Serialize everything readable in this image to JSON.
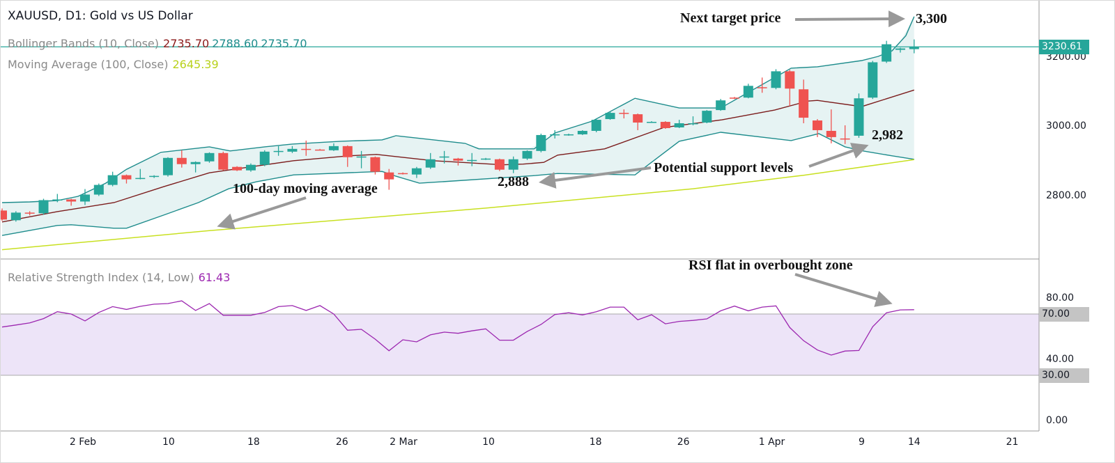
{
  "header": {
    "title": "XAUUSD, D1: Gold vs US Dollar",
    "bb_label": "Bollinger Bands (10, Close)",
    "bb_values": [
      "2735.70",
      "2788.60",
      "2735.70"
    ],
    "ma_label": "Moving Average (100, Close)",
    "ma_value": "2645.39",
    "rsi_label": "Relative Strength Index (14, Low)",
    "rsi_value": "61.43"
  },
  "annotations": {
    "next_target": "Next target price",
    "target_value": "3,300",
    "support_label": "Potential support levels",
    "support_1": "2,888",
    "support_2": "2,982",
    "ma_note": "100-day moving average",
    "rsi_note": "RSI flat in overbought zone"
  },
  "colors": {
    "up": "#26a69a",
    "down": "#ef5350",
    "band": "#1e8c8c",
    "band_fill": "#e6f3f3",
    "basis": "#7b1c1c",
    "ma": "#c8e020",
    "rsi": "#9c27b0",
    "rsi_zone": "#ede4f8"
  },
  "chart_data": [
    {
      "type": "candlestick",
      "title": "XAUUSD, D1: Gold vs US Dollar",
      "ylim": [
        2600,
        3330
      ],
      "y_ticks": [
        "3200.00",
        "3000.00",
        "2800.00"
      ],
      "y_tick_values": [
        3200,
        3000,
        2800
      ],
      "last_price": "3230.61",
      "last_price_value": 3230.61,
      "x_ticks": [
        {
          "label": "2 Feb",
          "index": 5.85
        },
        {
          "label": "10",
          "index": 12.05
        },
        {
          "label": "18",
          "index": 18.2
        },
        {
          "label": "26",
          "index": 24.6
        },
        {
          "label": "2 Mar",
          "index": 29.05
        },
        {
          "label": "10",
          "index": 35.2
        },
        {
          "label": "18",
          "index": 42.95
        },
        {
          "label": "26",
          "index": 49.3
        },
        {
          "label": "1 Apr",
          "index": 55.7
        },
        {
          "label": "9",
          "index": 62.2
        },
        {
          "label": "14",
          "index": 66
        },
        {
          "label": "21",
          "index": 73.1
        }
      ],
      "ohlc": [
        [
          2758,
          2764,
          2728,
          2732
        ],
        [
          2730,
          2756,
          2726,
          2752
        ],
        [
          2752,
          2756,
          2744,
          2750
        ],
        [
          2750,
          2792,
          2746,
          2788
        ],
        [
          2788,
          2806,
          2782,
          2790
        ],
        [
          2790,
          2792,
          2772,
          2784
        ],
        [
          2784,
          2820,
          2774,
          2804
        ],
        [
          2804,
          2836,
          2800,
          2832
        ],
        [
          2832,
          2870,
          2828,
          2860
        ],
        [
          2860,
          2862,
          2836,
          2848
        ],
        [
          2850,
          2878,
          2848,
          2852
        ],
        [
          2856,
          2860,
          2852,
          2858
        ],
        [
          2860,
          2912,
          2856,
          2910
        ],
        [
          2910,
          2932,
          2882,
          2892
        ],
        [
          2892,
          2900,
          2868,
          2898
        ],
        [
          2900,
          2926,
          2896,
          2924
        ],
        [
          2924,
          2928,
          2874,
          2876
        ],
        [
          2884,
          2886,
          2872,
          2874
        ],
        [
          2874,
          2894,
          2870,
          2890
        ],
        [
          2890,
          2932,
          2886,
          2928
        ],
        [
          2928,
          2944,
          2916,
          2930
        ],
        [
          2928,
          2944,
          2924,
          2936
        ],
        [
          2936,
          2960,
          2916,
          2934
        ],
        [
          2934,
          2936,
          2932,
          2933
        ],
        [
          2932,
          2952,
          2930,
          2944
        ],
        [
          2944,
          2946,
          2884,
          2912
        ],
        [
          2912,
          2930,
          2880,
          2914
        ],
        [
          2912,
          2914,
          2862,
          2870
        ],
        [
          2868,
          2878,
          2818,
          2848
        ],
        [
          2866,
          2868,
          2862,
          2864
        ],
        [
          2862,
          2884,
          2852,
          2880
        ],
        [
          2882,
          2924,
          2878,
          2906
        ],
        [
          2912,
          2930,
          2894,
          2914
        ],
        [
          2908,
          2910,
          2888,
          2902
        ],
        [
          2904,
          2924,
          2886,
          2904
        ],
        [
          2906,
          2910,
          2904,
          2908
        ],
        [
          2906,
          2908,
          2872,
          2876
        ],
        [
          2876,
          2914,
          2866,
          2906
        ],
        [
          2908,
          2932,
          2904,
          2930
        ],
        [
          2930,
          2980,
          2926,
          2976
        ],
        [
          2976,
          2990,
          2966,
          2978
        ],
        [
          2976,
          2980,
          2974,
          2978
        ],
        [
          2978,
          2990,
          2976,
          2988
        ],
        [
          2988,
          3024,
          2984,
          3020
        ],
        [
          3022,
          3044,
          3020,
          3040
        ],
        [
          3040,
          3050,
          3024,
          3038
        ],
        [
          3036,
          3038,
          2990,
          3012
        ],
        [
          3014,
          3016,
          3012,
          3014
        ],
        [
          3014,
          3016,
          2994,
          2996
        ],
        [
          2998,
          3020,
          2996,
          3010
        ],
        [
          3008,
          3030,
          3004,
          3010
        ],
        [
          3012,
          3048,
          3010,
          3046
        ],
        [
          3048,
          3080,
          3046,
          3076
        ],
        [
          3084,
          3086,
          3080,
          3082
        ],
        [
          3084,
          3124,
          3082,
          3118
        ],
        [
          3114,
          3142,
          3098,
          3112
        ],
        [
          3112,
          3166,
          3108,
          3160
        ],
        [
          3160,
          3164,
          3060,
          3110
        ],
        [
          3108,
          3136,
          3010,
          3026
        ],
        [
          3018,
          3022,
          2970,
          2990
        ],
        [
          2988,
          3050,
          2952,
          2970
        ],
        [
          2966,
          3004,
          2950,
          2964
        ],
        [
          2974,
          3096,
          2968,
          3082
        ],
        [
          3084,
          3190,
          3080,
          3186
        ],
        [
          3188,
          3248,
          3184,
          3238
        ],
        [
          3222,
          3228,
          3214,
          3226
        ],
        [
          3224,
          3252,
          3212,
          3230.61
        ]
      ],
      "bb_upper": [
        [
          0,
          2781
        ],
        [
          2,
          2783
        ],
        [
          4,
          2787
        ],
        [
          5.5,
          2799
        ],
        [
          7.5,
          2837
        ],
        [
          9,
          2877
        ],
        [
          11.5,
          2926
        ],
        [
          15,
          2942
        ],
        [
          16.5,
          2930
        ],
        [
          19,
          2942
        ],
        [
          21,
          2950
        ],
        [
          24.5,
          2958
        ],
        [
          27.5,
          2962
        ],
        [
          28.5,
          2974
        ],
        [
          33.5,
          2952
        ],
        [
          34.5,
          2936
        ],
        [
          38.5,
          2936
        ],
        [
          40,
          2982
        ],
        [
          42.7,
          3016
        ],
        [
          45.8,
          3082
        ],
        [
          49,
          3054
        ],
        [
          52,
          3054
        ],
        [
          57.1,
          3169
        ],
        [
          59,
          3173
        ],
        [
          62.2,
          3191
        ],
        [
          63.4,
          3203
        ],
        [
          64.4,
          3219
        ],
        [
          65.4,
          3263
        ],
        [
          66,
          3318
        ]
      ],
      "bb_basis": [
        [
          0,
          2725
        ],
        [
          4,
          2755
        ],
        [
          8.1,
          2781
        ],
        [
          11.7,
          2827
        ],
        [
          15,
          2867
        ],
        [
          21.1,
          2902
        ],
        [
          25.1,
          2916
        ],
        [
          27.1,
          2920
        ],
        [
          31.2,
          2902
        ],
        [
          36.2,
          2890
        ],
        [
          37.7,
          2892
        ],
        [
          39.2,
          2897
        ],
        [
          40.2,
          2918
        ],
        [
          43.6,
          2936
        ],
        [
          47.9,
          2998
        ],
        [
          52.1,
          3020
        ],
        [
          55.9,
          3048
        ],
        [
          58.3,
          3074
        ],
        [
          59,
          3076
        ],
        [
          62.2,
          3058
        ],
        [
          66,
          3106
        ]
      ],
      "bb_lower": [
        [
          0,
          2686
        ],
        [
          4,
          2715
        ],
        [
          5,
          2717
        ],
        [
          8.1,
          2707
        ],
        [
          9,
          2707
        ],
        [
          11.7,
          2745
        ],
        [
          14.2,
          2781
        ],
        [
          16.4,
          2821
        ],
        [
          18.4,
          2841
        ],
        [
          21.1,
          2861
        ],
        [
          27.5,
          2871
        ],
        [
          28.5,
          2857
        ],
        [
          30.2,
          2837
        ],
        [
          31.8,
          2841
        ],
        [
          38.6,
          2859
        ],
        [
          40.2,
          2865
        ],
        [
          45.8,
          2861
        ],
        [
          49,
          2958
        ],
        [
          52,
          2984
        ],
        [
          57.1,
          2960
        ],
        [
          59.1,
          2980
        ],
        [
          61,
          2942
        ],
        [
          62.3,
          2930
        ],
        [
          64.4,
          2916
        ],
        [
          66,
          2906
        ]
      ],
      "ma100": [
        [
          0,
          2645
        ],
        [
          15,
          2700
        ],
        [
          35,
          2765
        ],
        [
          50,
          2821
        ],
        [
          58,
          2860
        ],
        [
          66,
          2905
        ]
      ]
    },
    {
      "type": "line",
      "title": "Relative Strength Index (14, Low)",
      "ylim": [
        0,
        100
      ],
      "y_ticks": [
        "80.00",
        "40.00",
        "0.00"
      ],
      "y_tick_values": [
        80,
        40,
        0
      ],
      "bands": {
        "upper": 70,
        "lower": 30,
        "upper_label": "70.00",
        "lower_label": "30.00"
      },
      "values": [
        61.5,
        62.8,
        64.2,
        67,
        71.5,
        70,
        65.5,
        71,
        74.8,
        73,
        75,
        76.4,
        76.8,
        78.6,
        72.3,
        76.8,
        69.2,
        69.2,
        69.2,
        71,
        74.8,
        75.5,
        72.3,
        75.5,
        70,
        59.4,
        60,
        53.6,
        46,
        53.2,
        51.8,
        56.4,
        58.2,
        57.4,
        59,
        60.3,
        52.9,
        52.9,
        58.6,
        63.2,
        69.7,
        70.8,
        69.4,
        71.5,
        74.5,
        74.5,
        66.2,
        69.5,
        63.6,
        65.2,
        65.8,
        66.8,
        72.1,
        75.2,
        72.1,
        74.5,
        75.3,
        61.2,
        52.6,
        46.5,
        43.2,
        45.8,
        46.2,
        61.7,
        70.8,
        72.7,
        72.8
      ]
    }
  ]
}
